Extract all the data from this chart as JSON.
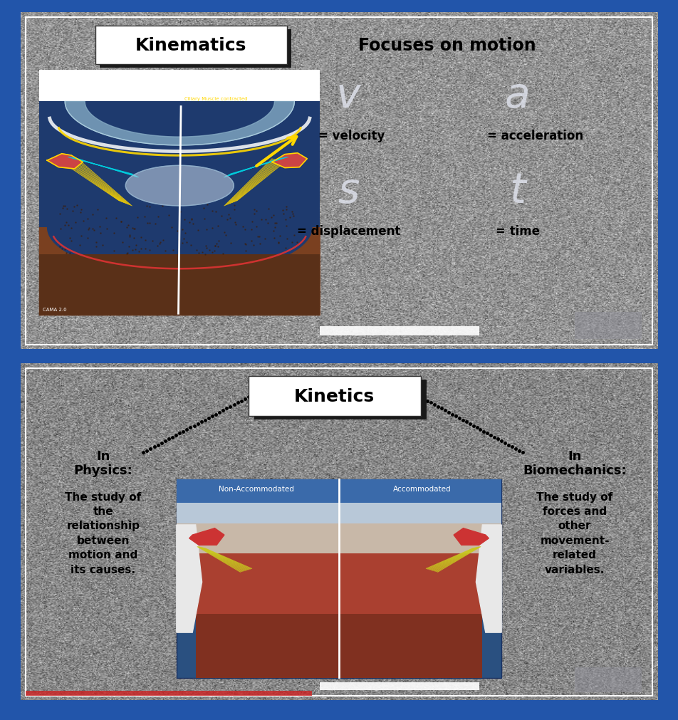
{
  "fig_width": 9.52,
  "fig_height": 10.12,
  "bg_outer": "#2255aa",
  "panel1_title": "Kinematics",
  "panel1_subtitle": "Focuses on motion",
  "panel2_title": "Kinetics",
  "panel2_left_title": "In\nPhysics:",
  "panel2_left_text": "The study of\nthe\nrelationship\nbetween\nmotion and\nits causes.",
  "panel2_right_title": "In\nBiomechanics:",
  "panel2_right_text": "The study of\nforces and\nother\nmovement-\nrelated\nvariables.",
  "white": "#ffffff",
  "black": "#000000",
  "symbol_color": "#dde0ea",
  "dark_shadow": "#1a1a1a",
  "panel_bg_light": "#d8d8d8",
  "panel_bg_lighter": "#e8e8e8"
}
